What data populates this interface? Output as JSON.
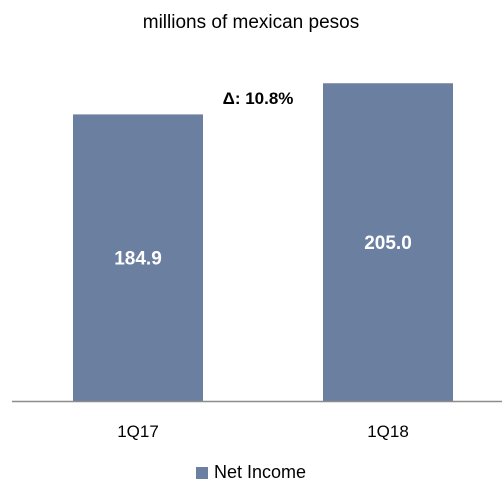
{
  "chart_data": {
    "type": "bar",
    "title": "millions of mexican pesos",
    "categories": [
      "1Q17",
      "1Q18"
    ],
    "series": [
      {
        "name": "Net Income",
        "values": [
          184.9,
          205.0
        ],
        "color": "#6B7FA0"
      }
    ],
    "data_labels": [
      "184.9",
      "205.0"
    ],
    "annotation": "Δ: 10.8%",
    "ylim": [
      0,
      220
    ],
    "grid": false,
    "legend_position": "bottom"
  },
  "colors": {
    "bar": "#6B7FA0",
    "axis": "#8C8C8C"
  }
}
